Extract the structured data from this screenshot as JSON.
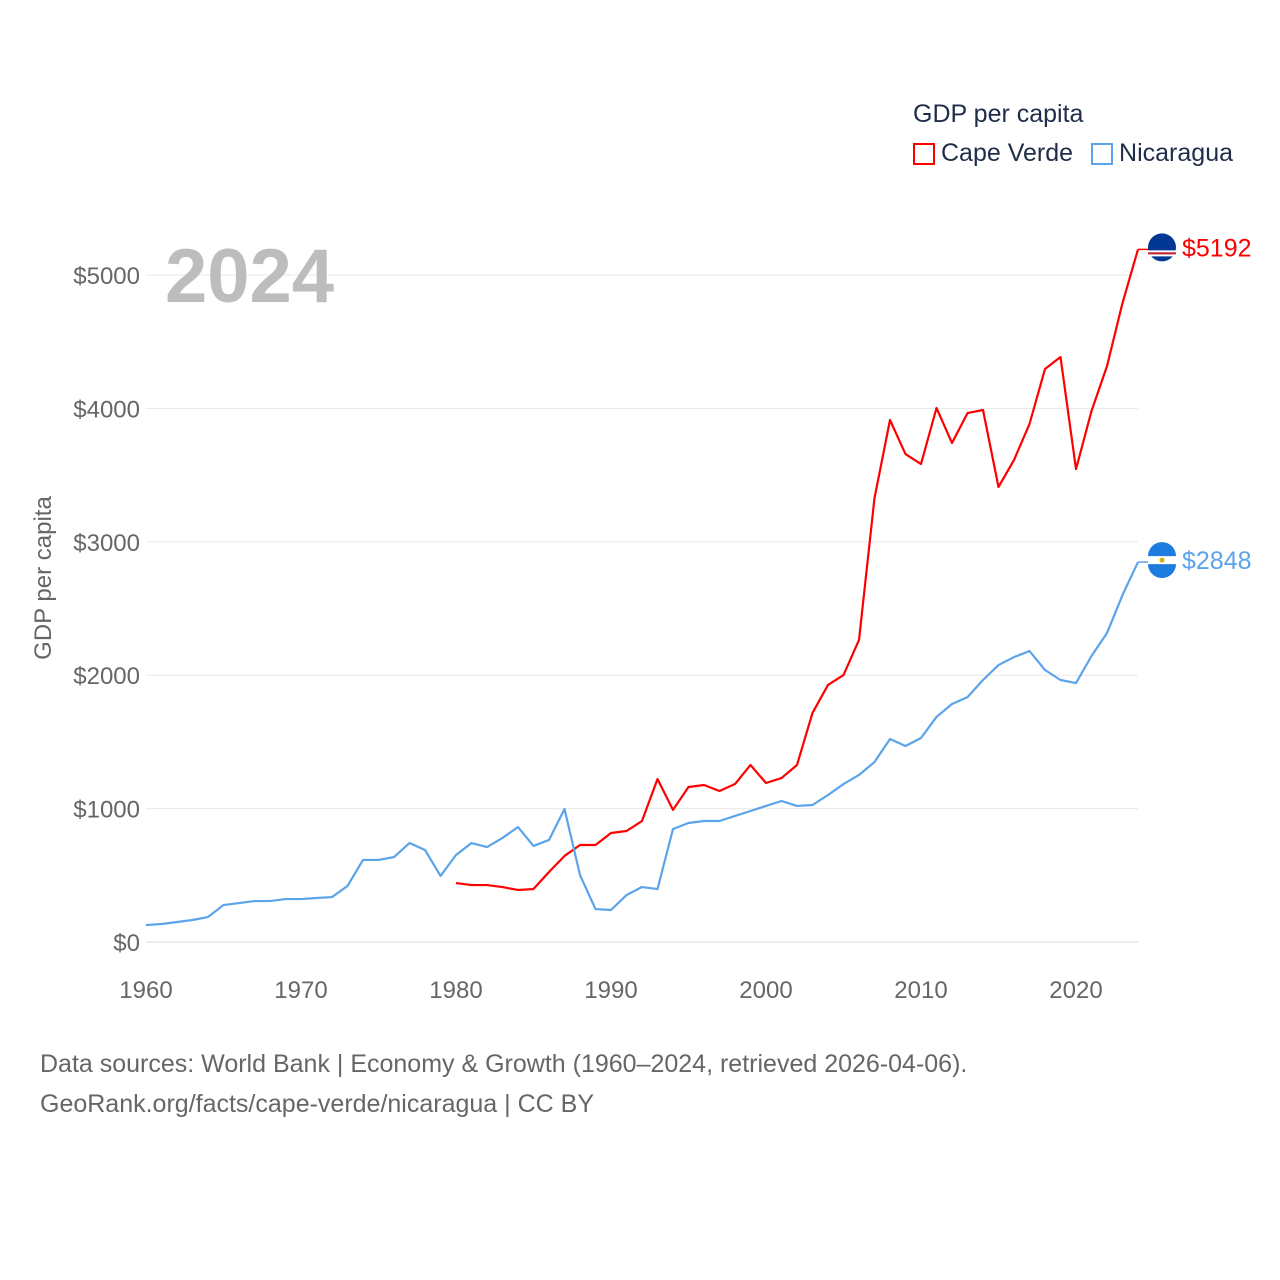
{
  "chart_data": {
    "type": "line",
    "title": "GDP per capita",
    "ylabel": "GDP per capita",
    "xlabel": "",
    "year_label": "2024",
    "xlim": [
      1960,
      2024
    ],
    "ylim": [
      0,
      5000
    ],
    "x_ticks": [
      "1960",
      "1970",
      "1980",
      "1990",
      "2000",
      "2010",
      "2020"
    ],
    "y_ticks": [
      {
        "value": 0,
        "label": "$0"
      },
      {
        "value": 1000,
        "label": "$1000"
      },
      {
        "value": 2000,
        "label": "$2000"
      },
      {
        "value": 3000,
        "label": "$3000"
      },
      {
        "value": 4000,
        "label": "$4000"
      },
      {
        "value": 5000,
        "label": "$5000"
      }
    ],
    "grid": true,
    "legend_placement": "top-right",
    "series": [
      {
        "name": "Cape Verde",
        "color": "#ff0000",
        "end_label": "$5192",
        "flag": "cape-verde-flag",
        "start_year": 1980,
        "values": [
          442,
          427,
          427,
          412,
          390,
          397,
          525,
          645,
          727,
          727,
          817,
          832,
          907,
          1222,
          990,
          1162,
          1177,
          1132,
          1184,
          1327,
          1192,
          1229,
          1327,
          1717,
          1927,
          2001,
          2264,
          3328,
          3913,
          3658,
          3583,
          4003,
          3741,
          3965,
          3988,
          3411,
          3613,
          3883,
          4295,
          4385,
          3545,
          3980,
          4317,
          4790,
          5192
        ]
      },
      {
        "name": "Nicaragua",
        "color": "#5ba4ea",
        "end_label": "$2848",
        "flag": "nicaragua-flag",
        "start_year": 1960,
        "values": [
          127,
          135,
          150,
          165,
          187,
          277,
          292,
          307,
          307,
          322,
          322,
          330,
          337,
          420,
          615,
          615,
          637,
          742,
          690,
          495,
          652,
          742,
          712,
          780,
          862,
          720,
          765,
          997,
          502,
          247,
          240,
          352,
          412,
          397,
          847,
          892,
          907,
          907,
          945,
          982,
          1020,
          1057,
          1020,
          1027,
          1102,
          1184,
          1252,
          1349,
          1522,
          1469,
          1529,
          1687,
          1784,
          1836,
          1964,
          2076,
          2136,
          2181,
          2039,
          1964,
          1941,
          2144,
          2316,
          2601,
          2848
        ]
      }
    ]
  },
  "footer": {
    "line1": "Data sources: World Bank | Economy & Growth (1960–2024, retrieved 2026-04-06).",
    "line2": "GeoRank.org/facts/cape-verde/nicaragua | CC BY"
  }
}
